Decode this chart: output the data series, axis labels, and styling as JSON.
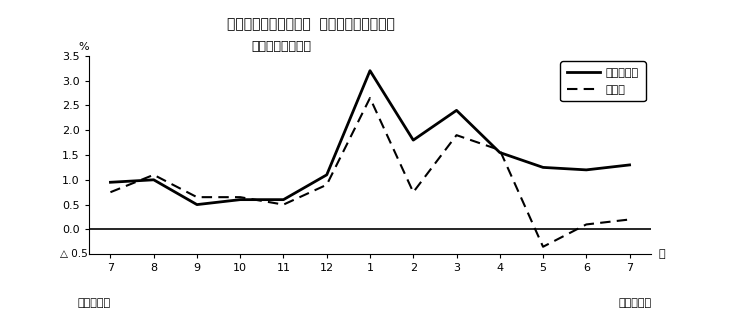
{
  "title_line1": "第３図　常用雇用指数  対前年同月比の推移",
  "title_line2": "（規模５人以上）",
  "x_labels": [
    "7",
    "8",
    "9",
    "10",
    "11",
    "12",
    "1",
    "2",
    "3",
    "4",
    "5",
    "6",
    "7"
  ],
  "x_bottom_left": "平成２２年",
  "x_bottom_right": "平成２３年",
  "x_unit": "月",
  "y_label": "%",
  "y_triangle_label": "△ 0.5",
  "ylim_min": -0.5,
  "ylim_max": 3.5,
  "yticks": [
    0.0,
    0.5,
    1.0,
    1.5,
    2.0,
    2.5,
    3.0,
    3.5
  ],
  "ytick_labels": [
    "0.0",
    "0.5",
    "1.0",
    "1.5",
    "2.0",
    "2.5",
    "3.0",
    "3.5"
  ],
  "series_solid": [
    0.95,
    1.0,
    0.5,
    0.6,
    0.6,
    1.1,
    3.2,
    1.8,
    2.4,
    1.55,
    1.25,
    1.2,
    1.3
  ],
  "series_dashed": [
    0.75,
    1.1,
    0.65,
    0.65,
    0.5,
    0.9,
    2.65,
    0.75,
    1.9,
    1.6,
    -0.35,
    0.1,
    0.2
  ],
  "legend_solid_label": "調査産業計",
  "legend_dashed_label": "製造業",
  "zero_line_y": 0.0,
  "background_color": "#ffffff",
  "line_color": "#000000"
}
